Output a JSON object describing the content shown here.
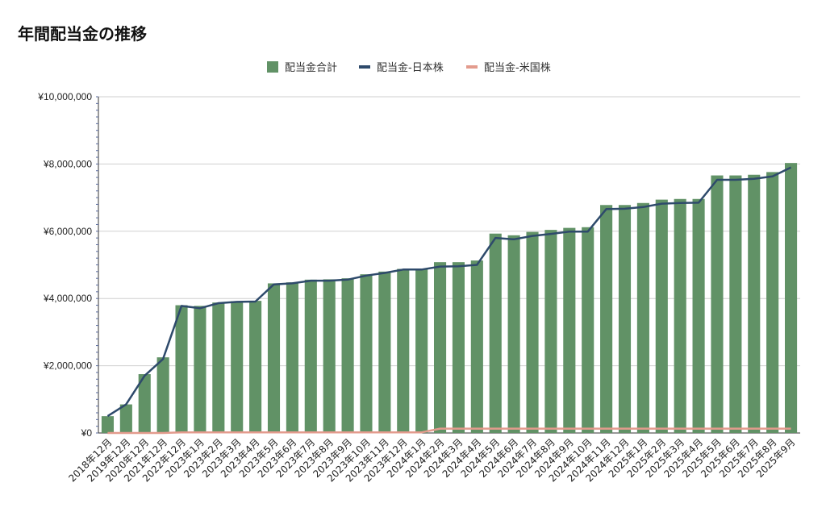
{
  "chart_data": {
    "type": "bar",
    "title": "年間配当金の推移",
    "xlabel": "",
    "ylabel": "",
    "ylim": [
      0,
      10000000
    ],
    "yticks": [
      0,
      2000000,
      4000000,
      6000000,
      8000000,
      10000000
    ],
    "ytick_labels": [
      "¥0",
      "¥2,000,000",
      "¥4,000,000",
      "¥6,000,000",
      "¥8,000,000",
      "¥10,000,000"
    ],
    "grid": true,
    "legend_position": "top",
    "categories": [
      "2018年12月",
      "2019年12月",
      "2020年12月",
      "2021年12月",
      "2022年12月",
      "2023年1月",
      "2023年2月",
      "2023年3月",
      "2023年4月",
      "2023年5月",
      "2023年6月",
      "2023年7月",
      "2023年8月",
      "2023年9月",
      "2023年10月",
      "2023年11月",
      "2023年12月",
      "2024年1月",
      "2024年2月",
      "2024年3月",
      "2024年4月",
      "2024年5月",
      "2024年6月",
      "2024年7月",
      "2024年8月",
      "2024年9月",
      "2024年10月",
      "2024年11月",
      "2024年12月",
      "2025年1月",
      "2025年2月",
      "2025年3月",
      "2025年4月",
      "2025年5月",
      "2025年6月",
      "2025年7月",
      "2025年8月",
      "2025年9月"
    ],
    "series": [
      {
        "name": "配当金合計",
        "type": "bar",
        "color": "#619266",
        "values": [
          500000,
          850000,
          1750000,
          2250000,
          3800000,
          3780000,
          3880000,
          3920000,
          3930000,
          4450000,
          4480000,
          4560000,
          4570000,
          4600000,
          4720000,
          4800000,
          4880000,
          4880000,
          5080000,
          5080000,
          5130000,
          5930000,
          5880000,
          5980000,
          6040000,
          6100000,
          6120000,
          6780000,
          6780000,
          6840000,
          6940000,
          6960000,
          6960000,
          7660000,
          7660000,
          7680000,
          7760000,
          8030000
        ]
      },
      {
        "name": "配当金-日本株",
        "type": "line",
        "color": "#2e4a6b",
        "values": [
          500000,
          850000,
          1700000,
          2200000,
          3780000,
          3710000,
          3860000,
          3900000,
          3910000,
          4420000,
          4450000,
          4530000,
          4530000,
          4560000,
          4680000,
          4760000,
          4860000,
          4860000,
          4950000,
          4960000,
          5000000,
          5800000,
          5760000,
          5860000,
          5920000,
          5990000,
          5990000,
          6660000,
          6670000,
          6720000,
          6820000,
          6840000,
          6850000,
          7530000,
          7530000,
          7560000,
          7630000,
          7900000
        ]
      },
      {
        "name": "配当金-米国株",
        "type": "line",
        "color": "#e39b8d",
        "values": [
          0,
          0,
          0,
          0,
          20000,
          20000,
          20000,
          20000,
          20000,
          20000,
          20000,
          20000,
          20000,
          20000,
          20000,
          20000,
          20000,
          20000,
          130000,
          130000,
          130000,
          130000,
          130000,
          130000,
          130000,
          130000,
          130000,
          130000,
          130000,
          130000,
          130000,
          130000,
          130000,
          130000,
          130000,
          130000,
          130000,
          130000
        ]
      }
    ]
  }
}
